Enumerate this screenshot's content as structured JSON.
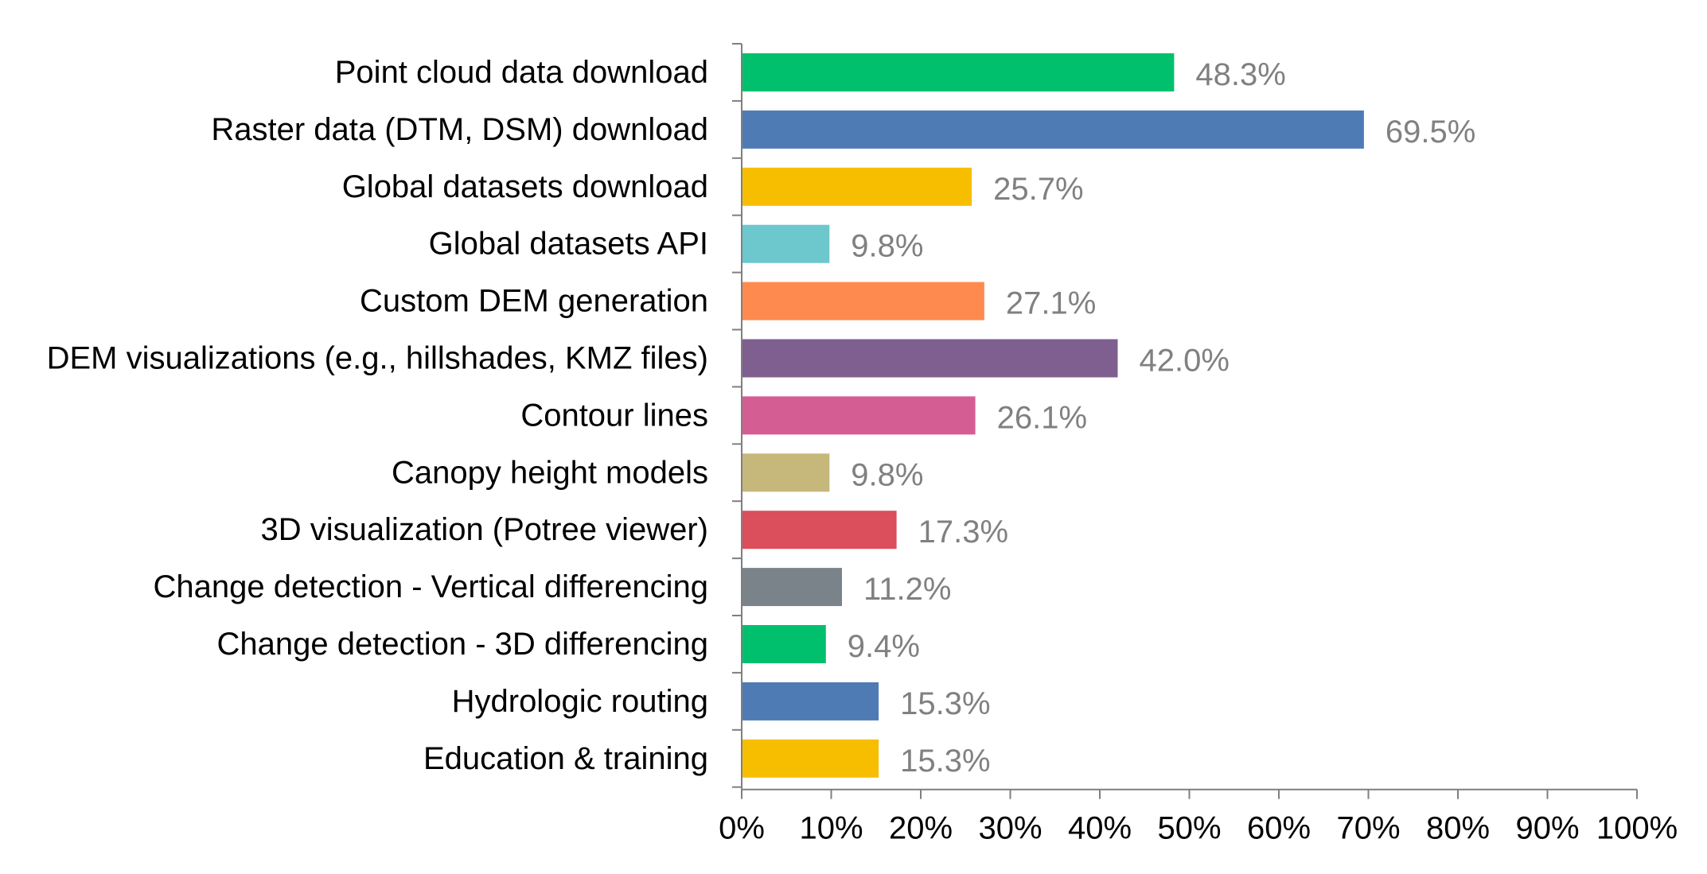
{
  "chart_data": {
    "type": "bar",
    "orientation": "horizontal",
    "title": "",
    "xlabel": "",
    "ylabel": "",
    "xlim": [
      0,
      100
    ],
    "grid": false,
    "legend": "none",
    "categories": [
      "Point cloud data download",
      "Raster data (DTM, DSM) download",
      "Global datasets download",
      "Global datasets API",
      "Custom DEM generation",
      "DEM visualizations (e.g., hillshades, KMZ files)",
      "Contour lines",
      "Canopy height models",
      "3D visualization (Potree viewer)",
      "Change detection - Vertical differencing",
      "Change detection - 3D differencing",
      "Hydrologic routing",
      "Education & training"
    ],
    "values": [
      48.3,
      69.5,
      25.7,
      9.8,
      27.1,
      42.0,
      26.1,
      9.8,
      17.3,
      11.2,
      9.4,
      15.3,
      15.3
    ],
    "value_labels": [
      "48.3%",
      "69.5%",
      "25.7%",
      "9.8%",
      "27.1%",
      "42.0%",
      "26.1%",
      "9.8%",
      "17.3%",
      "11.2%",
      "9.4%",
      "15.3%",
      "15.3%"
    ],
    "colors": [
      "#00C06E",
      "#4F7BB5",
      "#F7BE00",
      "#6CC8CC",
      "#FF8A50",
      "#7E5F8F",
      "#D45E93",
      "#C6B77A",
      "#DB4E5C",
      "#7A828A",
      "#00C06E",
      "#4F7BB5",
      "#F7BE00"
    ],
    "tick_values": [
      0,
      10,
      20,
      30,
      40,
      50,
      60,
      70,
      80,
      90,
      100
    ],
    "tick_labels": [
      "0%",
      "10%",
      "20%",
      "30%",
      "40%",
      "50%",
      "60%",
      "70%",
      "80%",
      "90%",
      "100%"
    ],
    "axis_color": "#7F7F7F",
    "value_label_color": "#808080"
  }
}
